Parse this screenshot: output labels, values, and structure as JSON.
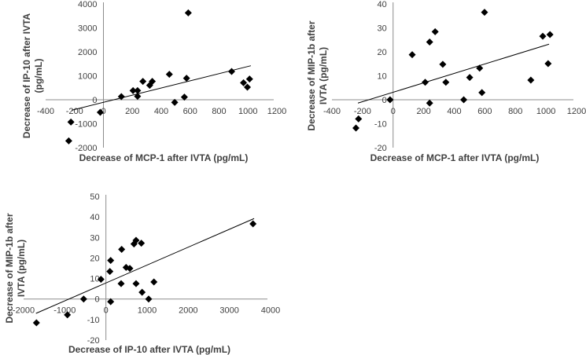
{
  "chart_data": [
    {
      "type": "scatter",
      "xlabel": "Decrease of MCP-1 after IVTA (pg/mL)",
      "ylabel_lines": [
        "Decrease of IP-10  after IVTA",
        "(pg/mL)"
      ],
      "xlim": [
        -400,
        1200
      ],
      "ylim": [
        -2000,
        4000
      ],
      "xticks": [
        -400,
        -200,
        0,
        200,
        400,
        600,
        800,
        1000,
        1200
      ],
      "yticks": [
        -2000,
        -1000,
        0,
        1000,
        2000,
        3000,
        4000
      ],
      "points": [
        [
          -240,
          -1716
        ],
        [
          -225,
          -929
        ],
        [
          -22,
          -525
        ],
        [
          124,
          131
        ],
        [
          205,
          383
        ],
        [
          236,
          383
        ],
        [
          236,
          142
        ],
        [
          273,
          765
        ],
        [
          320,
          601
        ],
        [
          338,
          765
        ],
        [
          456,
          1060
        ],
        [
          493,
          -109
        ],
        [
          560,
          109
        ],
        [
          575,
          896
        ],
        [
          587,
          3628
        ],
        [
          887,
          1180
        ],
        [
          969,
          710
        ],
        [
          996,
          525
        ],
        [
          1011,
          863
        ]
      ],
      "trendline": [
        [
          -220,
          -437
        ],
        [
          1020,
          1420
        ]
      ],
      "grid": false
    },
    {
      "type": "scatter",
      "xlabel": "Decrease of MCP-1 after IVTA (pg/mL)",
      "ylabel_lines": [
        "Decrease of MIP-1b  after",
        "IVTA (pg/mL)"
      ],
      "xlim": [
        -400,
        1200
      ],
      "ylim": [
        -20,
        40
      ],
      "xticks": [
        -400,
        -200,
        0,
        200,
        400,
        600,
        800,
        1000,
        1200
      ],
      "yticks": [
        -20,
        -10,
        0,
        10,
        20,
        30,
        40
      ],
      "points": [
        [
          -243,
          -11.8
        ],
        [
          -226,
          -8.0
        ],
        [
          -20,
          0
        ],
        [
          125,
          18.8
        ],
        [
          210,
          7.3
        ],
        [
          239,
          24.1
        ],
        [
          239,
          -1.4
        ],
        [
          275,
          28.4
        ],
        [
          325,
          14.8
        ],
        [
          345,
          7.3
        ],
        [
          462,
          0
        ],
        [
          501,
          9.3
        ],
        [
          566,
          13.2
        ],
        [
          581,
          3.0
        ],
        [
          598,
          36.5
        ],
        [
          901,
          8.2
        ],
        [
          979,
          26.5
        ],
        [
          1026,
          27.2
        ],
        [
          1014,
          15.1
        ]
      ],
      "trendline": [
        [
          -230,
          -1.4
        ],
        [
          1020,
          23.2
        ]
      ],
      "grid": false
    },
    {
      "type": "scatter",
      "xlabel": "Decrease of IP-10 after IVTA (pg/mL)",
      "ylabel_lines": [
        "Decrease of MIP-1b  after",
        "IVTA (pg/mL)"
      ],
      "xlim": [
        -2000,
        4000
      ],
      "ylim": [
        -20,
        50
      ],
      "xticks": [
        -2000,
        -1000,
        0,
        1000,
        2000,
        3000,
        4000
      ],
      "yticks": [
        -20,
        -10,
        0,
        10,
        20,
        30,
        40,
        50
      ],
      "points": [
        [
          -1688,
          -11.6
        ],
        [
          -936,
          -7.7
        ],
        [
          -541,
          0
        ],
        [
          -121,
          9.6
        ],
        [
          96,
          13.4
        ],
        [
          115,
          18.8
        ],
        [
          115,
          -1.3
        ],
        [
          369,
          7.5
        ],
        [
          382,
          24.2
        ],
        [
          490,
          15.4
        ],
        [
          580,
          14.9
        ],
        [
          732,
          7.5
        ],
        [
          682,
          26.8
        ],
        [
          732,
          28.6
        ],
        [
          860,
          27.2
        ],
        [
          879,
          3.3
        ],
        [
          1038,
          0
        ],
        [
          1166,
          8.3
        ],
        [
          3573,
          36.6
        ]
      ],
      "trendline": [
        [
          -1700,
          -7
        ],
        [
          3600,
          39.2
        ]
      ],
      "grid": false
    }
  ]
}
